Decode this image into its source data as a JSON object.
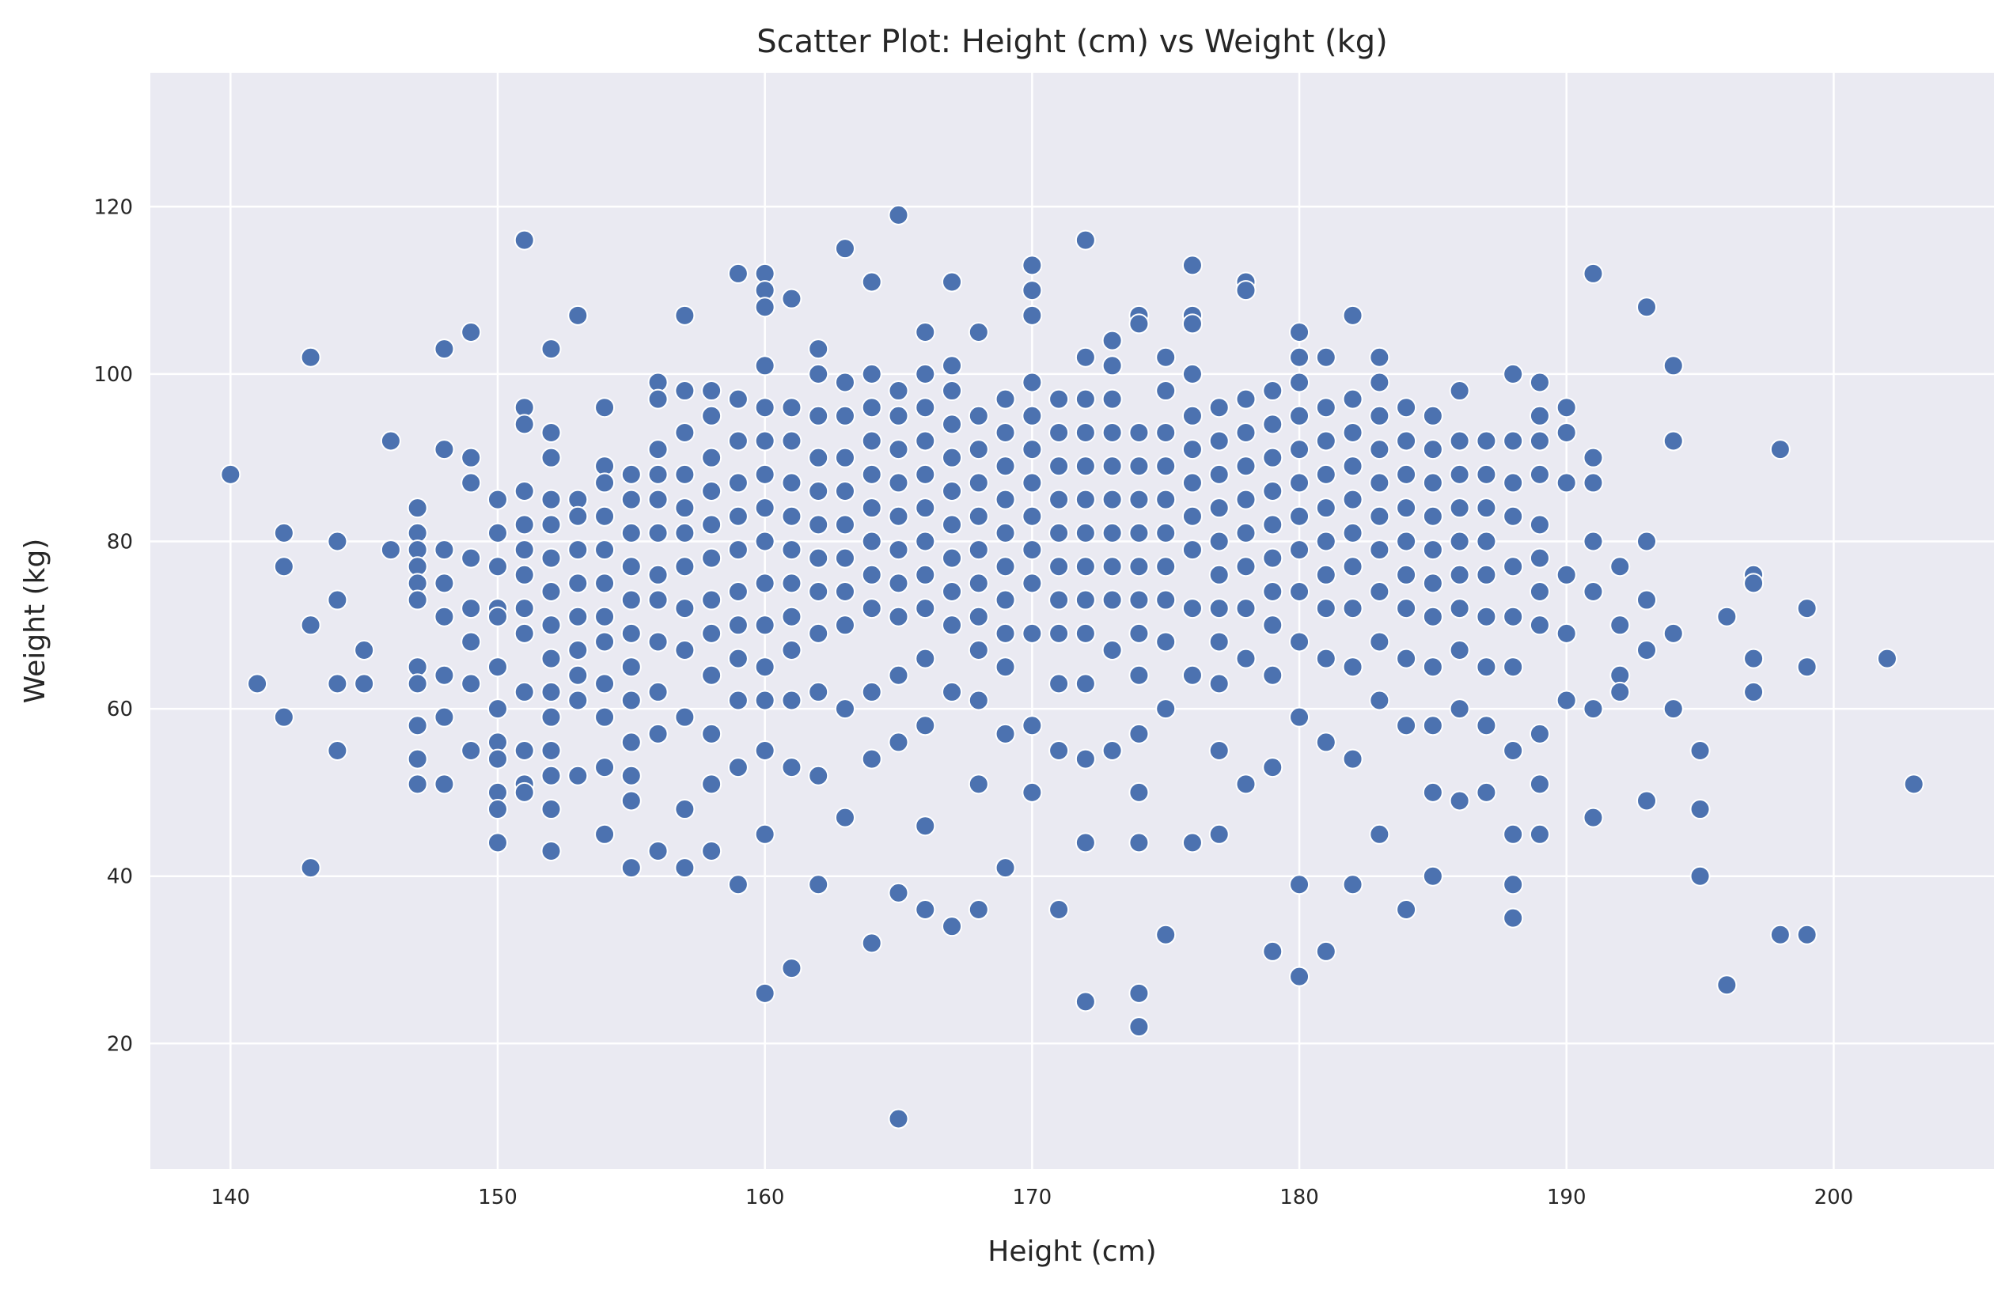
{
  "chart_data": {
    "type": "scatter",
    "title": "Scatter Plot: Height (cm) vs Weight (kg)",
    "xlabel": "Height (cm)",
    "ylabel": "Weight (kg)",
    "xlim": [
      137,
      206
    ],
    "ylim": [
      5,
      136
    ],
    "xticks": [
      140,
      150,
      160,
      170,
      180,
      190,
      200
    ],
    "yticks": [
      20,
      40,
      60,
      80,
      100,
      120
    ],
    "grid": true,
    "colors": {
      "background": "#eaeaf2",
      "grid": "#ffffff",
      "marker": "#4c72b0",
      "marker_edge": "#ffffff",
      "text": "#262626"
    },
    "points": {
      "x": [
        140,
        141,
        142,
        142,
        142,
        143,
        143,
        143,
        144,
        144,
        144,
        144,
        145,
        145,
        146,
        146,
        147,
        147,
        147,
        147,
        147,
        147,
        147,
        147,
        147,
        147,
        147,
        148,
        148,
        148,
        148,
        148,
        148,
        148,
        148,
        149,
        149,
        149,
        149,
        149,
        149,
        149,
        149,
        150,
        150,
        150,
        150,
        150,
        150,
        150,
        150,
        150,
        150,
        150,
        150,
        151,
        151,
        151,
        151,
        151,
        151,
        151,
        151,
        151,
        151,
        151,
        151,
        151,
        152,
        152,
        152,
        152,
        152,
        152,
        152,
        152,
        152,
        152,
        152,
        152,
        152,
        152,
        152,
        153,
        153,
        153,
        153,
        153,
        153,
        153,
        153,
        153,
        153,
        154,
        154,
        154,
        154,
        154,
        154,
        154,
        154,
        154,
        154,
        154,
        154,
        155,
        155,
        155,
        155,
        155,
        155,
        155,
        155,
        155,
        155,
        155,
        155,
        156,
        156,
        156,
        156,
        156,
        156,
        156,
        156,
        156,
        156,
        156,
        156,
        157,
        157,
        157,
        157,
        157,
        157,
        157,
        157,
        157,
        157,
        157,
        157,
        158,
        158,
        158,
        158,
        158,
        158,
        158,
        158,
        158,
        158,
        158,
        158,
        159,
        159,
        159,
        159,
        159,
        159,
        159,
        159,
        159,
        159,
        159,
        159,
        160,
        160,
        160,
        160,
        160,
        160,
        160,
        160,
        160,
        160,
        160,
        160,
        160,
        160,
        160,
        160,
        161,
        161,
        161,
        161,
        161,
        161,
        161,
        161,
        161,
        161,
        161,
        161,
        162,
        162,
        162,
        162,
        162,
        162,
        162,
        162,
        162,
        162,
        162,
        162,
        163,
        163,
        163,
        163,
        163,
        163,
        163,
        163,
        163,
        163,
        163,
        164,
        164,
        164,
        164,
        164,
        164,
        164,
        164,
        164,
        164,
        164,
        164,
        165,
        165,
        165,
        165,
        165,
        165,
        165,
        165,
        165,
        165,
        165,
        165,
        165,
        166,
        166,
        166,
        166,
        166,
        166,
        166,
        166,
        166,
        166,
        166,
        166,
        166,
        167,
        167,
        167,
        167,
        167,
        167,
        167,
        167,
        167,
        167,
        167,
        167,
        168,
        168,
        168,
        168,
        168,
        168,
        168,
        168,
        168,
        168,
        168,
        168,
        169,
        169,
        169,
        169,
        169,
        169,
        169,
        169,
        169,
        169,
        169,
        170,
        170,
        170,
        170,
        170,
        170,
        170,
        170,
        170,
        170,
        170,
        170,
        170,
        171,
        171,
        171,
        171,
        171,
        171,
        171,
        171,
        171,
        171,
        171,
        172,
        172,
        172,
        172,
        172,
        172,
        172,
        172,
        172,
        172,
        172,
        172,
        172,
        172,
        173,
        173,
        173,
        173,
        173,
        173,
        173,
        173,
        173,
        173,
        173,
        174,
        174,
        174,
        174,
        174,
        174,
        174,
        174,
        174,
        174,
        174,
        174,
        174,
        174,
        174,
        175,
        175,
        175,
        175,
        175,
        175,
        175,
        175,
        175,
        175,
        175,
        176,
        176,
        176,
        176,
        176,
        176,
        176,
        176,
        176,
        176,
        176,
        176,
        177,
        177,
        177,
        177,
        177,
        177,
        177,
        177,
        177,
        177,
        177,
        178,
        178,
        178,
        178,
        178,
        178,
        178,
        178,
        178,
        178,
        178,
        179,
        179,
        179,
        179,
        179,
        179,
        179,
        179,
        179,
        179,
        179,
        180,
        180,
        180,
        180,
        180,
        180,
        180,
        180,
        180,
        180,
        180,
        180,
        180,
        181,
        181,
        181,
        181,
        181,
        181,
        181,
        181,
        181,
        181,
        181,
        182,
        182,
        182,
        182,
        182,
        182,
        182,
        182,
        182,
        182,
        182,
        183,
        183,
        183,
        183,
        183,
        183,
        183,
        183,
        183,
        183,
        183,
        184,
        184,
        184,
        184,
        184,
        184,
        184,
        184,
        184,
        184,
        185,
        185,
        185,
        185,
        185,
        185,
        185,
        185,
        185,
        185,
        185,
        186,
        186,
        186,
        186,
        186,
        186,
        186,
        186,
        186,
        186,
        187,
        187,
        187,
        187,
        187,
        187,
        187,
        187,
        187,
        188,
        188,
        188,
        188,
        188,
        188,
        188,
        188,
        188,
        188,
        188,
        189,
        189,
        189,
        189,
        189,
        189,
        189,
        189,
        189,
        189,
        189,
        190,
        190,
        190,
        190,
        190,
        190,
        191,
        191,
        191,
        191,
        191,
        191,
        191,
        192,
        192,
        192,
        192,
        193,
        193,
        193,
        193,
        193,
        194,
        194,
        194,
        194,
        195,
        195,
        195,
        196,
        196,
        197,
        197,
        197,
        197,
        198,
        198,
        199,
        199,
        199,
        202,
        203
      ],
      "y": [
        88,
        63,
        81,
        77,
        59,
        102,
        70,
        41,
        80,
        73,
        63,
        55,
        67,
        63,
        92,
        79,
        84,
        81,
        79,
        77,
        75,
        73,
        65,
        63,
        58,
        54,
        51,
        103,
        91,
        79,
        75,
        71,
        64,
        59,
        51,
        105,
        90,
        87,
        78,
        72,
        68,
        63,
        55,
        85,
        81,
        77,
        72,
        65,
        60,
        56,
        54,
        50,
        48,
        44,
        71,
        116,
        96,
        94,
        86,
        82,
        79,
        76,
        72,
        69,
        62,
        55,
        51,
        50,
        103,
        93,
        90,
        85,
        82,
        78,
        74,
        70,
        66,
        62,
        59,
        55,
        52,
        48,
        43,
        107,
        85,
        83,
        79,
        75,
        71,
        67,
        64,
        61,
        52,
        96,
        89,
        87,
        83,
        79,
        75,
        71,
        68,
        63,
        59,
        53,
        45,
        88,
        85,
        81,
        77,
        73,
        69,
        65,
        61,
        56,
        52,
        49,
        41,
        99,
        97,
        91,
        88,
        85,
        81,
        76,
        73,
        68,
        62,
        57,
        43,
        107,
        98,
        93,
        88,
        84,
        81,
        77,
        72,
        67,
        59,
        48,
        41,
        98,
        95,
        90,
        86,
        82,
        78,
        73,
        69,
        64,
        57,
        51,
        43,
        112,
        97,
        92,
        87,
        83,
        79,
        74,
        70,
        66,
        61,
        53,
        39,
        112,
        110,
        108,
        101,
        96,
        92,
        88,
        84,
        80,
        75,
        70,
        65,
        61,
        55,
        45,
        26,
        109,
        96,
        92,
        87,
        83,
        79,
        75,
        71,
        67,
        61,
        53,
        29,
        103,
        100,
        95,
        90,
        86,
        82,
        78,
        74,
        69,
        62,
        52,
        39,
        115,
        99,
        95,
        90,
        86,
        82,
        78,
        74,
        70,
        60,
        47,
        111,
        100,
        96,
        92,
        88,
        84,
        80,
        76,
        72,
        62,
        54,
        32,
        119,
        98,
        95,
        91,
        87,
        83,
        79,
        75,
        71,
        64,
        56,
        38,
        11,
        105,
        100,
        96,
        92,
        88,
        84,
        80,
        76,
        72,
        66,
        58,
        46,
        36,
        111,
        101,
        98,
        94,
        90,
        86,
        82,
        78,
        74,
        70,
        62,
        34,
        105,
        95,
        91,
        87,
        83,
        79,
        75,
        71,
        67,
        61,
        51,
        36,
        97,
        93,
        89,
        85,
        81,
        77,
        73,
        69,
        65,
        57,
        41,
        113,
        110,
        107,
        99,
        95,
        91,
        87,
        83,
        79,
        75,
        69,
        58,
        50,
        97,
        93,
        89,
        85,
        81,
        77,
        73,
        69,
        63,
        55,
        36,
        116,
        102,
        97,
        93,
        89,
        85,
        81,
        77,
        73,
        69,
        63,
        54,
        44,
        25,
        104,
        101,
        97,
        93,
        89,
        85,
        81,
        77,
        73,
        67,
        55,
        107,
        106,
        93,
        89,
        85,
        81,
        77,
        73,
        69,
        64,
        57,
        50,
        44,
        26,
        22,
        102,
        98,
        93,
        89,
        85,
        81,
        77,
        73,
        68,
        60,
        33,
        113,
        107,
        106,
        100,
        95,
        91,
        87,
        83,
        79,
        72,
        64,
        44,
        96,
        92,
        88,
        84,
        80,
        76,
        72,
        68,
        63,
        55,
        45,
        111,
        110,
        97,
        93,
        89,
        85,
        81,
        77,
        72,
        66,
        51,
        98,
        94,
        90,
        86,
        82,
        78,
        74,
        70,
        64,
        53,
        31,
        105,
        102,
        99,
        95,
        91,
        87,
        83,
        79,
        74,
        68,
        59,
        39,
        28,
        102,
        96,
        92,
        88,
        84,
        80,
        76,
        72,
        66,
        56,
        31,
        107,
        97,
        93,
        89,
        85,
        81,
        77,
        72,
        65,
        54,
        39,
        102,
        99,
        95,
        91,
        87,
        83,
        79,
        74,
        68,
        61,
        45,
        96,
        92,
        88,
        84,
        80,
        76,
        72,
        66,
        58,
        36,
        95,
        91,
        87,
        83,
        79,
        75,
        71,
        65,
        58,
        50,
        40,
        98,
        92,
        88,
        84,
        80,
        76,
        72,
        67,
        60,
        49,
        92,
        88,
        84,
        80,
        76,
        71,
        65,
        58,
        50,
        100,
        92,
        87,
        83,
        77,
        71,
        65,
        55,
        45,
        39,
        35,
        99,
        95,
        92,
        88,
        82,
        78,
        74,
        70,
        57,
        51,
        45,
        96,
        93,
        87,
        76,
        69,
        61,
        112,
        90,
        87,
        80,
        74,
        60,
        47,
        77,
        70,
        64,
        62,
        108,
        80,
        73,
        67,
        49,
        101,
        92,
        69,
        60,
        55,
        48,
        40,
        71,
        27,
        76,
        75,
        66,
        62,
        91,
        33,
        72,
        65,
        33,
        66,
        51
      ]
    }
  }
}
